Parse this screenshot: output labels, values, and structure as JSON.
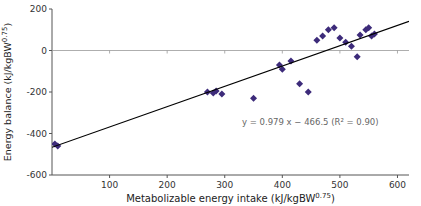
{
  "chart_data": {
    "type": "scatter",
    "x_label": "Metabolizable energy intake (kJ/kgBW0.75)",
    "y_label": "Energy balance (kJ/kgBW0.75)",
    "series": [
      {
        "type": "scatter",
        "color": "#3d2b7a",
        "marker": "diamond",
        "x": [
          5,
          10,
          270,
          280,
          285,
          295,
          350,
          395,
          400,
          415,
          430,
          445,
          460,
          470,
          480,
          490,
          500,
          510,
          520,
          530,
          535,
          545,
          550,
          555,
          560
        ],
        "values": [
          -450,
          -460,
          -200,
          -205,
          -195,
          -210,
          -230,
          -70,
          -90,
          -50,
          -160,
          -200,
          50,
          70,
          100,
          110,
          60,
          40,
          20,
          -30,
          75,
          100,
          110,
          70,
          80
        ]
      },
      {
        "type": "line",
        "color": "#000000",
        "line_style": "solid",
        "x": [
          0,
          620
        ],
        "values": [
          -466.5,
          140.48
        ]
      }
    ],
    "annotations": [
      {
        "text": "y = 0.979 x − 466.5 (R² = 0.90)",
        "x": 330,
        "y": -345
      }
    ],
    "xlim": [
      0,
      620
    ],
    "ylim": [
      -600,
      200
    ],
    "xticks": [
      100,
      200,
      300,
      400,
      500,
      600
    ],
    "yticks": [
      -600,
      -400,
      -200,
      0,
      200
    ],
    "grid": false
  }
}
